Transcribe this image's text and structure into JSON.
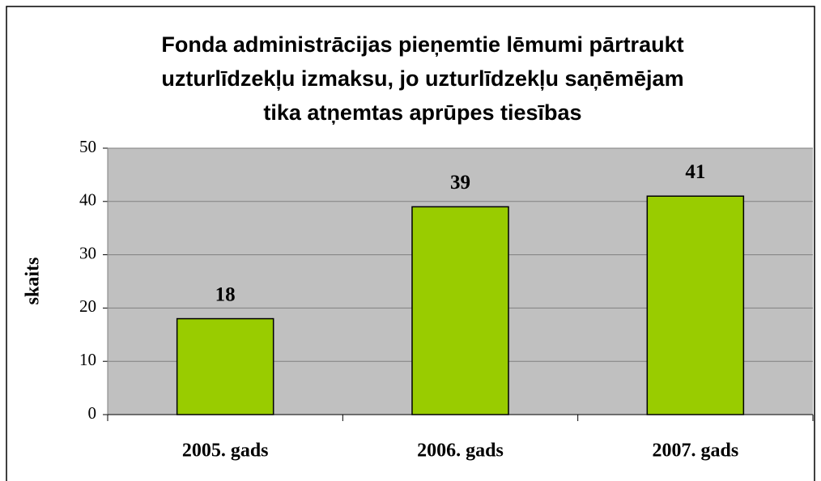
{
  "chart_data": {
    "type": "bar",
    "title": [
      "Fonda administrācijas pieņemtie lēmumi pārtraukt",
      "uzturlīdzekļu izmaksu, jo uzturlīdzekļu saņēmējam",
      "tika atņemtas aprūpes tiesības"
    ],
    "y_label": "skaits",
    "categories": [
      "2005. gads",
      "2006. gads",
      "2007. gads"
    ],
    "values": [
      18,
      39,
      41
    ],
    "color": "#99cc00",
    "ylim": [
      0,
      50
    ],
    "yticks": [
      0,
      10,
      20,
      30,
      40,
      50
    ],
    "grid": true
  }
}
